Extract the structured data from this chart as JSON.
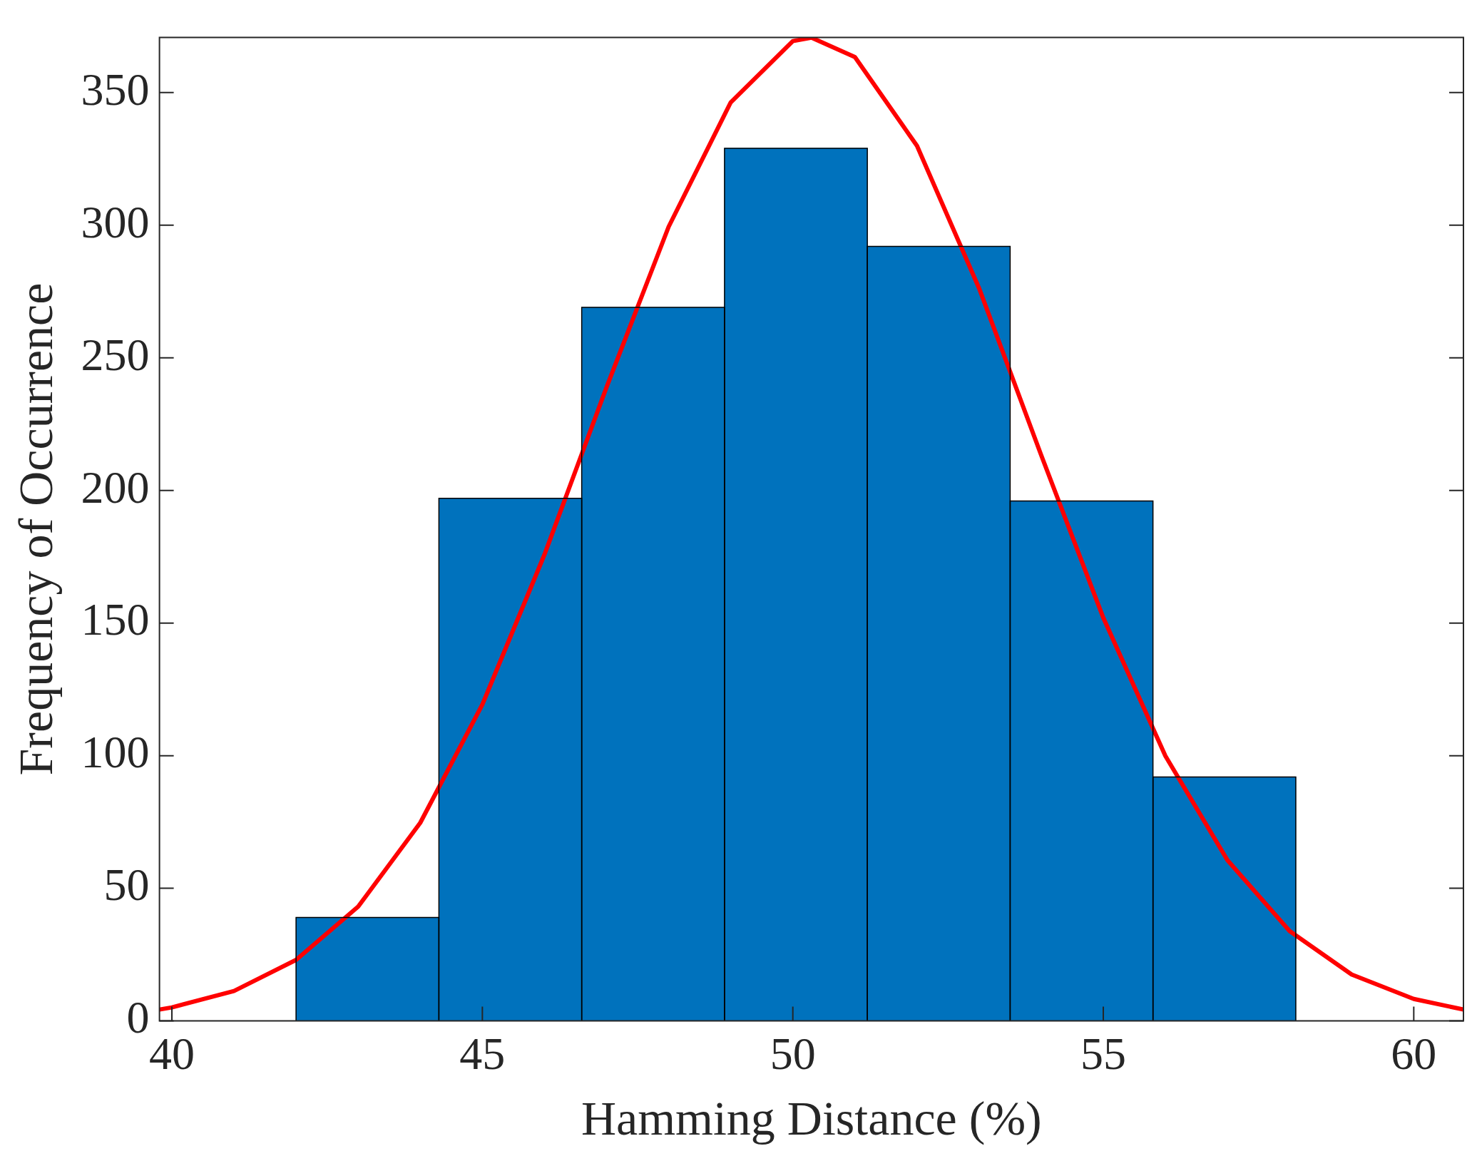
{
  "chart_data": {
    "type": "histogram",
    "xlabel": "Hamming Distance (%)",
    "ylabel": "Frequency of Occurrence",
    "bins": [
      42.0,
      44.3,
      46.6,
      48.9,
      51.2,
      53.5,
      55.8,
      58.1
    ],
    "values": [
      39,
      197,
      269,
      329,
      292,
      196,
      92
    ],
    "color": "#0072bd",
    "series": [
      {
        "type": "line",
        "color": "#ff0000",
        "x": [
          39.8,
          40,
          41,
          42,
          43,
          44,
          45,
          46,
          47,
          48,
          49,
          50,
          50.3,
          51,
          52,
          53,
          54,
          55,
          56,
          57,
          58,
          59,
          60,
          60.8
        ],
        "values": [
          4.3,
          5.1,
          11.3,
          23.0,
          43.1,
          74.7,
          119.3,
          175.8,
          238.9,
          299.4,
          346.3,
          369.4,
          370.7,
          363.4,
          329.9,
          276.2,
          213.3,
          152.0,
          99.9,
          60.6,
          33.9,
          17.5,
          8.3,
          4.3
        ]
      }
    ],
    "xlim": [
      39.8,
      60.8
    ],
    "ylim": [
      0,
      370.8
    ],
    "xticks": [
      40,
      45,
      50,
      55,
      60
    ],
    "yticks": [
      0,
      50,
      100,
      150,
      200,
      250,
      300,
      350
    ],
    "grid": false,
    "legend": false,
    "marker": "none",
    "line_style": "solid"
  }
}
